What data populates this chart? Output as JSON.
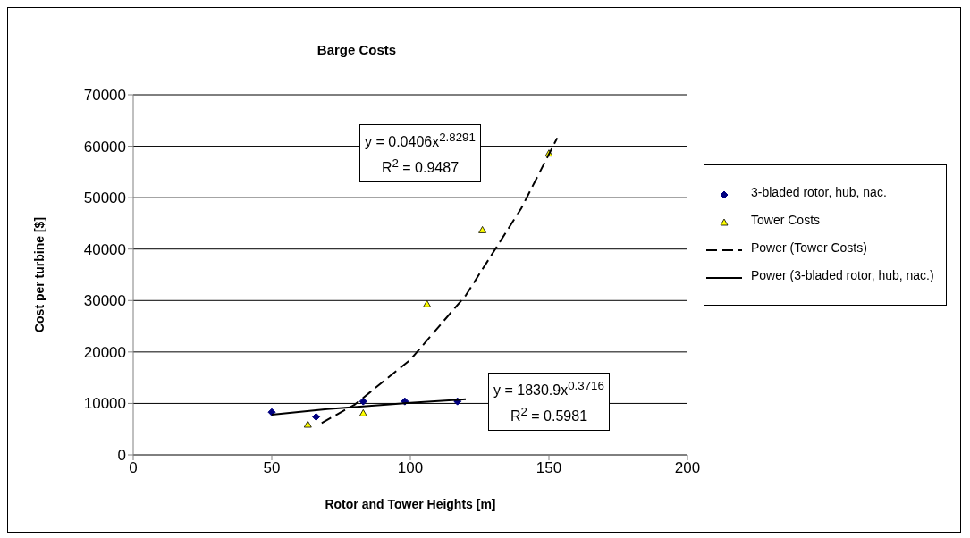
{
  "chart_data": {
    "type": "scatter",
    "title": "Barge Costs",
    "xlabel": "Rotor and Tower Heights [m]",
    "ylabel": "Cost per turbine [$]",
    "xlim": [
      0,
      200
    ],
    "xticks": [
      0,
      50,
      100,
      150,
      200
    ],
    "ylim": [
      0,
      70000
    ],
    "yticks": [
      0,
      10000,
      20000,
      30000,
      40000,
      50000,
      60000,
      70000
    ],
    "grid": "y",
    "legend": "right",
    "series": [
      {
        "name": "3-bladed rotor, hub, nac.",
        "marker": "diamond",
        "color": "#000080",
        "x": [
          50,
          66,
          83,
          98,
          117
        ],
        "values": [
          8300,
          7400,
          10400,
          10400,
          10400
        ]
      },
      {
        "name": "Tower Costs",
        "marker": "triangle",
        "color": "#ffff00",
        "x": [
          63,
          83,
          106,
          126,
          150
        ],
        "values": [
          5900,
          8100,
          29300,
          43700,
          58600
        ]
      },
      {
        "name": "Power (Tower Costs)",
        "type": "line",
        "marker": "none",
        "line_style": "dashed",
        "color": "#000000",
        "x": [
          68,
          80,
          100,
          120,
          140,
          153
        ],
        "values": [
          6200,
          9800,
          18500,
          31000,
          47900,
          61600
        ]
      },
      {
        "name": "Power (3-bladed rotor, hub, nac.)",
        "type": "line",
        "marker": "none",
        "line_style": "solid",
        "color": "#000000",
        "x": [
          50,
          70,
          85,
          100,
          120
        ],
        "values": [
          7800,
          8900,
          9500,
          10100,
          10800
        ]
      }
    ],
    "annotations": [
      "y = 0.0406x$^{2.8291}$",
      "R$^{2}$ = 0.9487",
      "y = 1830.9x$^{0.3716}$",
      "R$^{2}$ = 0.5981"
    ]
  }
}
